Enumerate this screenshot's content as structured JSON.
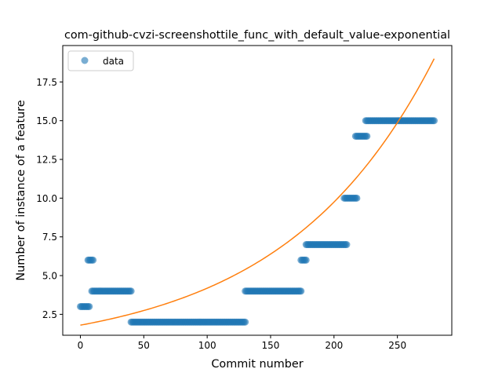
{
  "chart_data": {
    "type": "scatter",
    "title": "com-github-cvzi-screenshottile_func_with_default_value-exponential",
    "xlabel": "Commit number",
    "ylabel": "Number of instance of a feature",
    "xlim": [
      -13.9,
      292.9
    ],
    "ylim": [
      1.15,
      19.85
    ],
    "xticks": [
      0,
      50,
      100,
      150,
      200,
      250
    ],
    "yticks": [
      2.5,
      5.0,
      7.5,
      10.0,
      12.5,
      15.0,
      17.5
    ],
    "grid": false,
    "legend_position": "upper left",
    "legend_label": "data",
    "point_color": "#1f77b4",
    "fit_color": "#ff7f0e",
    "data_segments": [
      {
        "x_start": 0,
        "x_end": 7,
        "y": 3
      },
      {
        "x_start": 6,
        "x_end": 10,
        "y": 6
      },
      {
        "x_start": 9,
        "x_end": 40,
        "y": 4
      },
      {
        "x_start": 40,
        "x_end": 130,
        "y": 2
      },
      {
        "x_start": 130,
        "x_end": 174,
        "y": 4
      },
      {
        "x_start": 174,
        "x_end": 178,
        "y": 6
      },
      {
        "x_start": 178,
        "x_end": 210,
        "y": 7
      },
      {
        "x_start": 208,
        "x_end": 218,
        "y": 10
      },
      {
        "x_start": 217,
        "x_end": 226,
        "y": 14
      },
      {
        "x_start": 225,
        "x_end": 279,
        "y": 15
      }
    ],
    "fit": {
      "model": "exponential",
      "x_range": [
        0,
        279
      ],
      "y_start": 1.8,
      "y_end": 19.0
    }
  }
}
